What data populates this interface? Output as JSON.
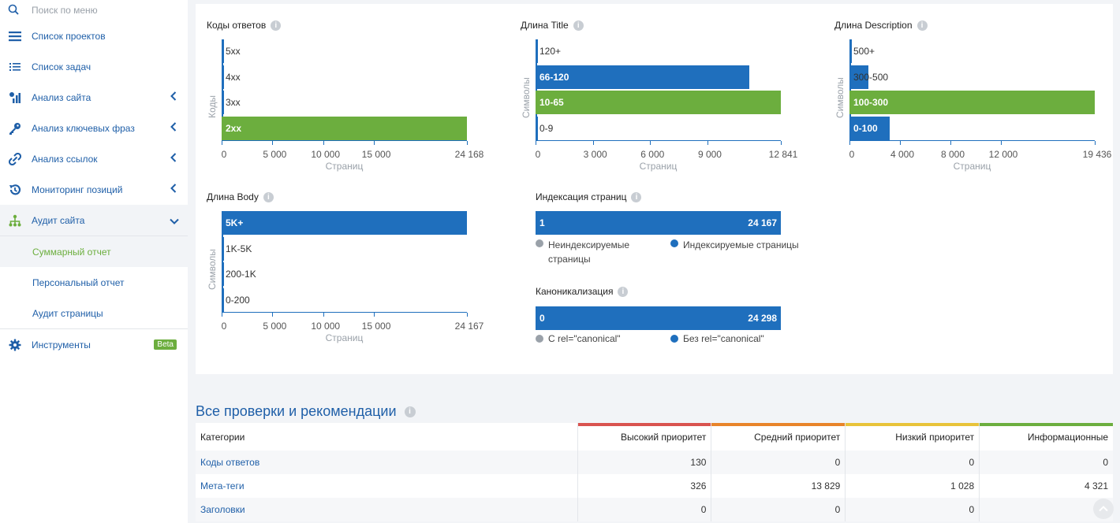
{
  "sidebar": {
    "search_placeholder": "Поиск по меню",
    "items": [
      {
        "label": "Список проектов",
        "icon": "list-icon"
      },
      {
        "label": "Список задач",
        "icon": "tasks-icon"
      },
      {
        "label": "Анализ сайта",
        "icon": "analytics-icon"
      },
      {
        "label": "Анализ ключевых фраз",
        "icon": "key-icon"
      },
      {
        "label": "Анализ ссылок",
        "icon": "link-icon"
      },
      {
        "label": "Мониторинг позиций",
        "icon": "history-icon"
      },
      {
        "label": "Аудит сайта",
        "icon": "sitemap-icon"
      }
    ],
    "sub_items": [
      {
        "label": "Суммарный отчет"
      },
      {
        "label": "Персональный отчет"
      },
      {
        "label": "Аудит страницы"
      }
    ],
    "tools": {
      "label": "Инструменты",
      "badge": "Beta"
    }
  },
  "colors": {
    "blue": "#1f6fbd",
    "green": "#6cae3e",
    "grey": "#9aa1a9",
    "high": "#d9534f",
    "medium": "#e8842a",
    "low": "#e8c33a",
    "info": "#6cae3e"
  },
  "chart_data": [
    {
      "type": "bar",
      "title": "Коды ответов",
      "xlabel": "Страниц",
      "ylabel": "Коды",
      "categories": [
        "5xx",
        "4xx",
        "3xx",
        "2xx"
      ],
      "values": [
        0,
        0,
        0,
        24168
      ],
      "colors": [
        "#1f6fbd",
        "#1f6fbd",
        "#1f6fbd",
        "#6cae3e"
      ],
      "xticks": [
        "0",
        "5 000",
        "10 000",
        "15 000",
        "24 168"
      ],
      "xtick_values": [
        0,
        5000,
        10000,
        15000,
        24168
      ],
      "xlim": [
        0,
        24168
      ]
    },
    {
      "type": "bar",
      "title": "Длина Title",
      "xlabel": "Страниц",
      "ylabel": "Символы",
      "categories": [
        "120+",
        "66-120",
        "10-65",
        "0-9"
      ],
      "values": [
        0,
        11200,
        12841,
        0
      ],
      "colors": [
        "#1f6fbd",
        "#1f6fbd",
        "#6cae3e",
        "#1f6fbd"
      ],
      "xticks": [
        "0",
        "3 000",
        "6 000",
        "9 000",
        "12 841"
      ],
      "xtick_values": [
        0,
        3000,
        6000,
        9000,
        12841
      ],
      "xlim": [
        0,
        12841
      ]
    },
    {
      "type": "bar",
      "title": "Длина Description",
      "xlabel": "Страниц",
      "ylabel": "Символы",
      "categories": [
        "500+",
        "300-500",
        "100-300",
        "0-100"
      ],
      "values": [
        0,
        1500,
        19436,
        3200
      ],
      "colors": [
        "#1f6fbd",
        "#1f6fbd",
        "#6cae3e",
        "#1f6fbd"
      ],
      "xticks": [
        "0",
        "4 000",
        "8 000",
        "12 000",
        "19 436"
      ],
      "xtick_values": [
        0,
        4000,
        8000,
        12000,
        19436
      ],
      "xlim": [
        0,
        19436
      ]
    },
    {
      "type": "bar",
      "title": "Длина Body",
      "xlabel": "Страниц",
      "ylabel": "Символы",
      "categories": [
        "5K+",
        "1K-5K",
        "200-1K",
        "0-200"
      ],
      "values": [
        24167,
        0,
        0,
        0
      ],
      "colors": [
        "#1f6fbd",
        "#1f6fbd",
        "#1f6fbd",
        "#1f6fbd"
      ],
      "xticks": [
        "0",
        "5 000",
        "10 000",
        "15 000",
        "24 167"
      ],
      "xtick_values": [
        0,
        5000,
        10000,
        15000,
        24167
      ],
      "xlim": [
        0,
        24167
      ]
    },
    {
      "type": "bar",
      "title": "Индексация страниц",
      "stacked": true,
      "series": [
        {
          "name": "Неиндексируемые страницы",
          "value": 1,
          "label": "1"
        },
        {
          "name": "Индексируемые страницы",
          "value": 24167,
          "label": "24 167"
        }
      ]
    },
    {
      "type": "bar",
      "title": "Каноникализация",
      "stacked": true,
      "series": [
        {
          "name": "С rel=\"canonical\"",
          "value": 0,
          "label": "0"
        },
        {
          "name": "Без rel=\"canonical\"",
          "value": 24298,
          "label": "24 298"
        }
      ]
    }
  ],
  "recommendations": {
    "title": "Все проверки и рекомендации",
    "columns": [
      "Категории",
      "Высокий приоритет",
      "Средний приоритет",
      "Низкий приоритет",
      "Информационные"
    ],
    "rows": [
      {
        "category": "Коды ответов",
        "high": "130",
        "medium": "0",
        "low": "0",
        "info": "0"
      },
      {
        "category": "Мета-теги",
        "high": "326",
        "medium": "13 829",
        "low": "1 028",
        "info": "4 321"
      },
      {
        "category": "Заголовки",
        "high": "0",
        "medium": "0",
        "low": "0",
        "info": "0"
      }
    ]
  }
}
